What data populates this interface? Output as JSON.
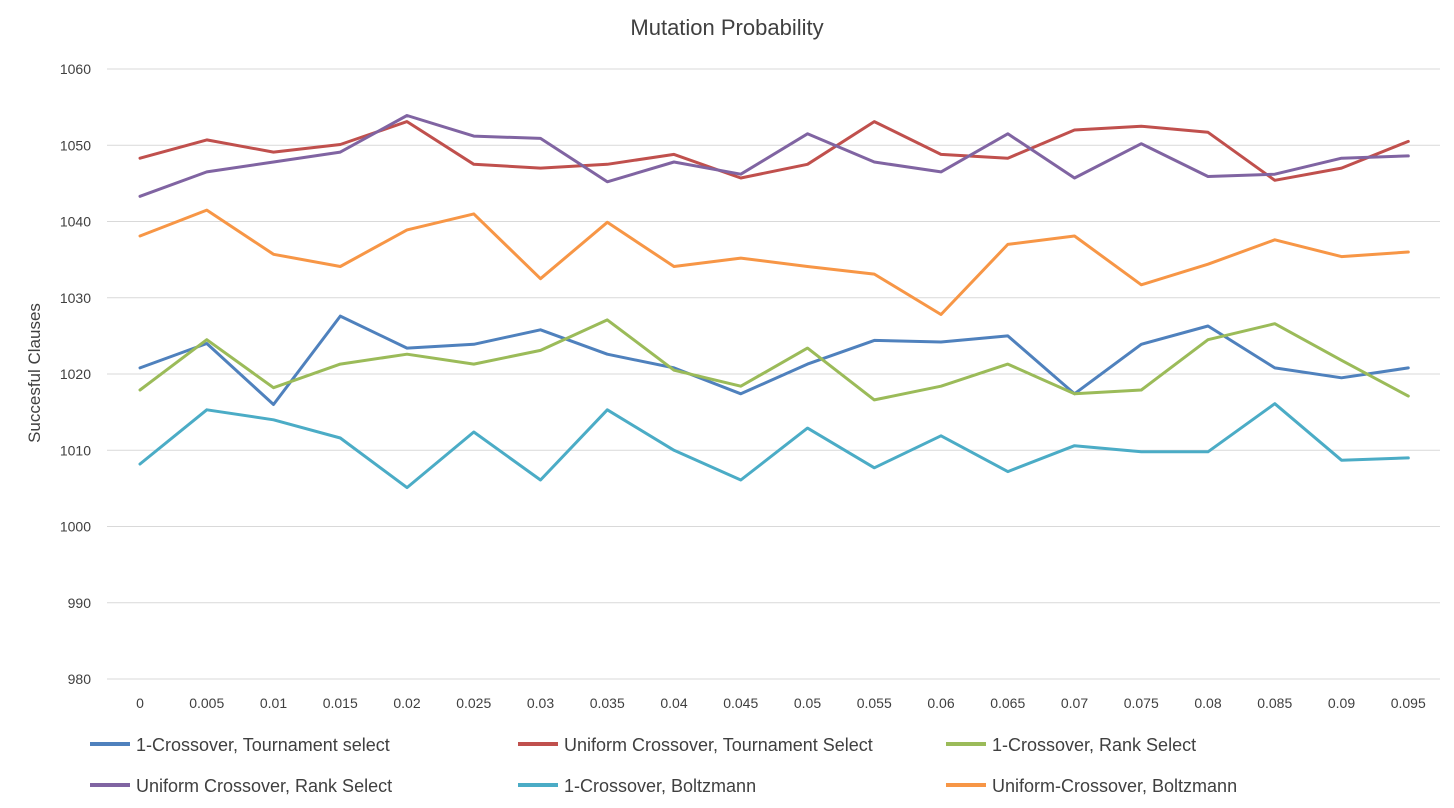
{
  "chart_data": {
    "type": "line",
    "title": "Mutation Probability",
    "xlabel": "",
    "ylabel": "Succesful Clauses",
    "categories": [
      "0",
      "0.005",
      "0.01",
      "0.015",
      "0.02",
      "0.025",
      "0.03",
      "0.035",
      "0.04",
      "0.045",
      "0.05",
      "0.055",
      "0.06",
      "0.065",
      "0.07",
      "0.075",
      "0.08",
      "0.085",
      "0.09",
      "0.095"
    ],
    "ylim": [
      980,
      1060
    ],
    "yticks": [
      980,
      990,
      1000,
      1010,
      1020,
      1030,
      1040,
      1050,
      1060
    ],
    "grid": true,
    "legend_position": "bottom",
    "series": [
      {
        "name": "1-Crossover, Tournament select",
        "color": "#4f81bd",
        "values": [
          1020.8,
          1024.0,
          1016.0,
          1027.6,
          1023.4,
          1023.9,
          1025.8,
          1022.6,
          1020.8,
          1017.4,
          1021.3,
          1024.4,
          1024.2,
          1025.0,
          1017.4,
          1023.9,
          1026.3,
          1020.8,
          1019.5,
          1020.8
        ]
      },
      {
        "name": "Uniform Crossover, Tournament Select",
        "color": "#c0504d",
        "values": [
          1048.3,
          1050.7,
          1049.1,
          1050.1,
          1053.1,
          1047.5,
          1047.0,
          1047.5,
          1048.8,
          1045.7,
          1047.5,
          1053.1,
          1048.8,
          1048.3,
          1052.0,
          1052.5,
          1051.7,
          1045.4,
          1047.0,
          1050.5
        ]
      },
      {
        "name": "1-Crossover, Rank Select",
        "color": "#9bbb59",
        "values": [
          1017.9,
          1024.5,
          1018.2,
          1021.3,
          1022.6,
          1021.3,
          1023.1,
          1027.1,
          1020.5,
          1018.4,
          1023.4,
          1016.6,
          1018.4,
          1021.3,
          1017.4,
          1017.9,
          1024.5,
          1026.6,
          1021.8,
          1017.1
        ]
      },
      {
        "name": "Uniform Crossover, Rank Select",
        "color": "#8064a2",
        "values": [
          1043.3,
          1046.5,
          1047.8,
          1049.1,
          1053.9,
          1051.2,
          1050.9,
          1045.2,
          1047.8,
          1046.2,
          1051.5,
          1047.8,
          1046.5,
          1051.5,
          1045.7,
          1050.2,
          1045.9,
          1046.2,
          1048.3,
          1048.6
        ]
      },
      {
        "name": "1-Crossover, Boltzmann",
        "color": "#4bacc6",
        "values": [
          1008.2,
          1015.3,
          1014.0,
          1011.6,
          1005.1,
          1012.4,
          1006.1,
          1015.3,
          1010.0,
          1006.1,
          1012.9,
          1007.7,
          1011.9,
          1007.2,
          1010.6,
          1009.8,
          1009.8,
          1016.1,
          1008.7,
          1009.0
        ]
      },
      {
        "name": "Uniform-Crossover, Boltzmann",
        "color": "#f79646",
        "values": [
          1038.1,
          1041.5,
          1035.7,
          1034.1,
          1038.9,
          1041.0,
          1032.5,
          1039.9,
          1034.1,
          1035.2,
          1034.1,
          1033.1,
          1027.8,
          1037.0,
          1038.1,
          1031.7,
          1034.4,
          1037.6,
          1035.4,
          1036.0
        ]
      }
    ]
  }
}
